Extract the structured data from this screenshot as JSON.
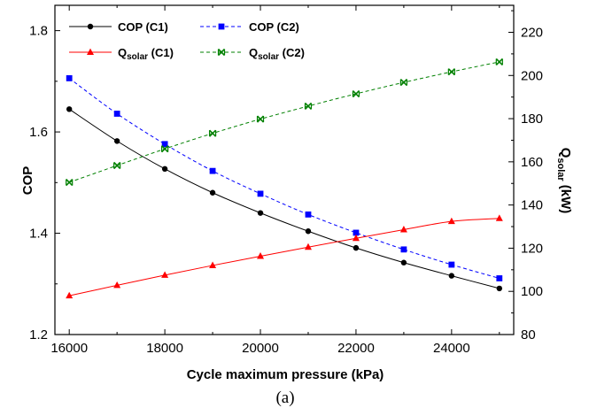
{
  "chart_data": {
    "type": "line",
    "caption": "(a)",
    "xlabel": "Cycle maximum pressure (kPa)",
    "ylabel_left": "COP",
    "ylabel_right": {
      "main": "Q",
      "sub": "solar",
      "unit": " (kW)"
    },
    "xlim": [
      15700,
      25300
    ],
    "ylim_left": [
      1.2,
      1.85
    ],
    "ylim_right": [
      80,
      232.5
    ],
    "x_ticks": [
      16000,
      18000,
      20000,
      22000,
      24000
    ],
    "y_left_ticks": [
      1.2,
      1.4,
      1.6,
      1.8
    ],
    "y_right_ticks": [
      80,
      100,
      120,
      140,
      160,
      180,
      200,
      220
    ],
    "legend_position": "top",
    "x": [
      16000,
      17000,
      18000,
      19000,
      20000,
      21000,
      22000,
      23000,
      24000,
      25000
    ],
    "series": [
      {
        "name": "COP (C1)",
        "axis": "left",
        "color": "#000000",
        "marker": "circle",
        "dash": "solid",
        "legend_main": "COP (C1)",
        "legend_sub": "",
        "legend_tail": "",
        "values": [
          1.645,
          1.582,
          1.527,
          1.48,
          1.44,
          1.404,
          1.371,
          1.342,
          1.316,
          1.291
        ]
      },
      {
        "name": "COP (C2)",
        "axis": "left",
        "color": "#0000ff",
        "marker": "square",
        "dash": "dashed",
        "legend_main": "COP (C2)",
        "legend_sub": "",
        "legend_tail": "",
        "values": [
          1.706,
          1.636,
          1.576,
          1.523,
          1.478,
          1.437,
          1.401,
          1.368,
          1.338,
          1.311
        ]
      },
      {
        "name": "Qsolar (C1)",
        "axis": "right",
        "color": "#ff0000",
        "marker": "triangle",
        "dash": "solid",
        "legend_main": "Q",
        "legend_sub": "solar",
        "legend_tail": " (C1)",
        "values": [
          98.0,
          102.8,
          107.5,
          112.0,
          116.3,
          120.5,
          124.6,
          128.6,
          132.4,
          133.8
        ]
      },
      {
        "name": "Qsolar (C2)",
        "axis": "right",
        "color": "#008000",
        "marker": "x",
        "dash": "dashed",
        "legend_main": "Q",
        "legend_sub": "solar",
        "legend_tail": " (C2)",
        "values": [
          150.5,
          158.3,
          166.0,
          173.2,
          179.8,
          185.8,
          191.5,
          196.8,
          201.7,
          206.3
        ]
      }
    ]
  }
}
